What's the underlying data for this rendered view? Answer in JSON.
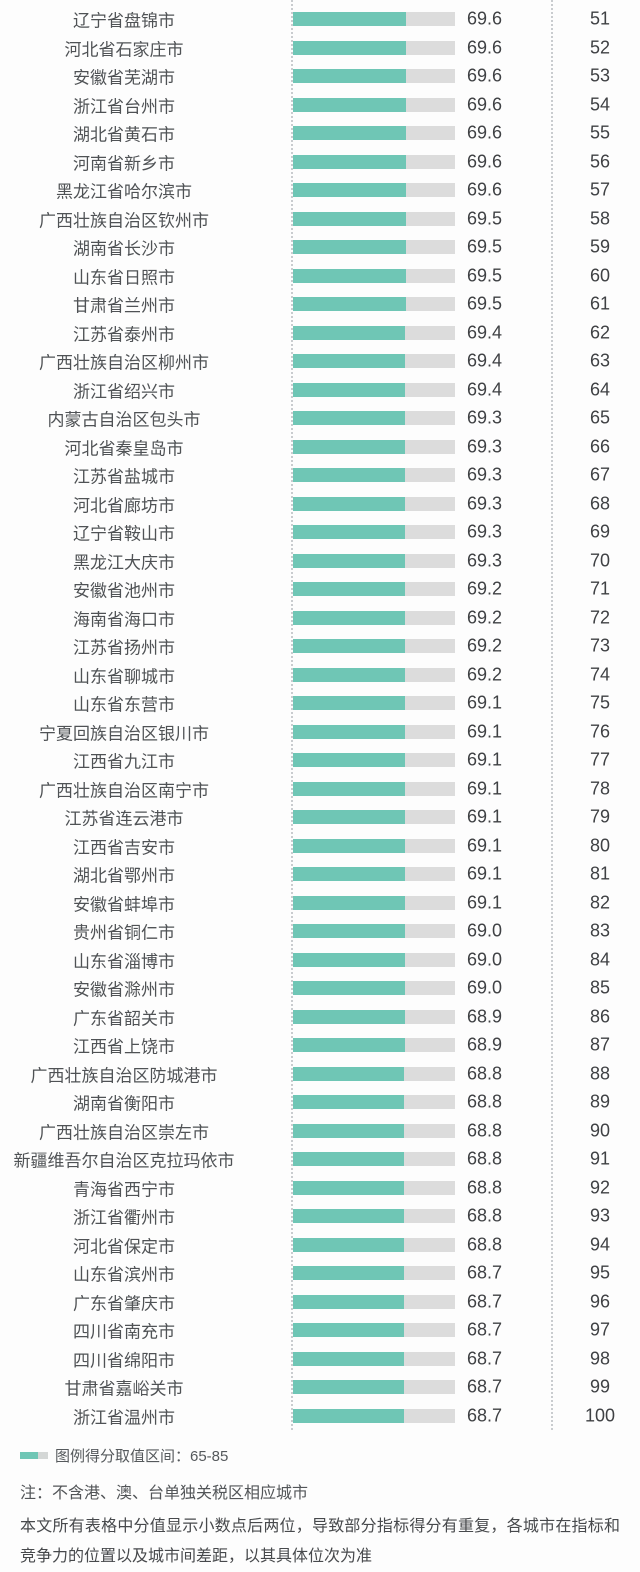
{
  "chart_data": {
    "type": "bar",
    "title": "",
    "orientation": "horizontal",
    "bar_scale_max": 100,
    "score_display_range": "65-85",
    "categories": [
      "辽宁省盘锦市",
      "河北省石家庄市",
      "安徽省芜湖市",
      "浙江省台州市",
      "湖北省黄石市",
      "河南省新乡市",
      "黑龙江省哈尔滨市",
      "广西壮族自治区钦州市",
      "湖南省长沙市",
      "山东省日照市",
      "甘肃省兰州市",
      "江苏省泰州市",
      "广西壮族自治区柳州市",
      "浙江省绍兴市",
      "内蒙古自治区包头市",
      "河北省秦皇岛市",
      "江苏省盐城市",
      "河北省廊坊市",
      "辽宁省鞍山市",
      "黑龙江大庆市",
      "安徽省池州市",
      "海南省海口市",
      "江苏省扬州市",
      "山东省聊城市",
      "山东省东营市",
      "宁夏回族自治区银川市",
      "江西省九江市",
      "广西壮族自治区南宁市",
      "江苏省连云港市",
      "江西省吉安市",
      "湖北省鄂州市",
      "安徽省蚌埠市",
      "贵州省铜仁市",
      "山东省淄博市",
      "安徽省滁州市",
      "广东省韶关市",
      "江西省上饶市",
      "广西壮族自治区防城港市",
      "湖南省衡阳市",
      "广西壮族自治区崇左市",
      "新疆维吾尔自治区克拉玛依市",
      "青海省西宁市",
      "浙江省衢州市",
      "河北省保定市",
      "山东省滨州市",
      "广东省肇庆市",
      "四川省南充市",
      "四川省绵阳市",
      "甘肃省嘉峪关市",
      "浙江省温州市"
    ],
    "values": [
      69.6,
      69.6,
      69.6,
      69.6,
      69.6,
      69.6,
      69.6,
      69.5,
      69.5,
      69.5,
      69.5,
      69.4,
      69.4,
      69.4,
      69.3,
      69.3,
      69.3,
      69.3,
      69.3,
      69.3,
      69.2,
      69.2,
      69.2,
      69.2,
      69.1,
      69.1,
      69.1,
      69.1,
      69.1,
      69.1,
      69.1,
      69.1,
      69.0,
      69.0,
      69.0,
      68.9,
      68.9,
      68.8,
      68.8,
      68.8,
      68.8,
      68.8,
      68.8,
      68.8,
      68.7,
      68.7,
      68.7,
      68.7,
      68.7,
      68.7
    ],
    "ranks": [
      51,
      52,
      53,
      54,
      55,
      56,
      57,
      58,
      59,
      60,
      61,
      62,
      63,
      64,
      65,
      66,
      67,
      68,
      69,
      70,
      71,
      72,
      73,
      74,
      75,
      76,
      77,
      78,
      79,
      80,
      81,
      82,
      83,
      84,
      85,
      86,
      87,
      88,
      89,
      90,
      91,
      92,
      93,
      94,
      95,
      96,
      97,
      98,
      99,
      100
    ],
    "value_decimals": 1,
    "legend_position": "bottom-left",
    "grid": "off"
  },
  "legend": {
    "label": "图例得分取值区间：65-85"
  },
  "note": "注：不含港、澳、台单独关税区相应城市",
  "footnote": "本文所有表格中分值显示小数点后两位，导致部分指标得分有重复，各城市在指标和竞争力的位置以及城市间差距，以其具体位次为准",
  "colors": {
    "bar_fill": "#6fc6b5",
    "bar_track": "#dcdcdc",
    "divider_dotted": "#c9cccf",
    "label_text": "#4f5255",
    "value_text": "#3f4144"
  }
}
